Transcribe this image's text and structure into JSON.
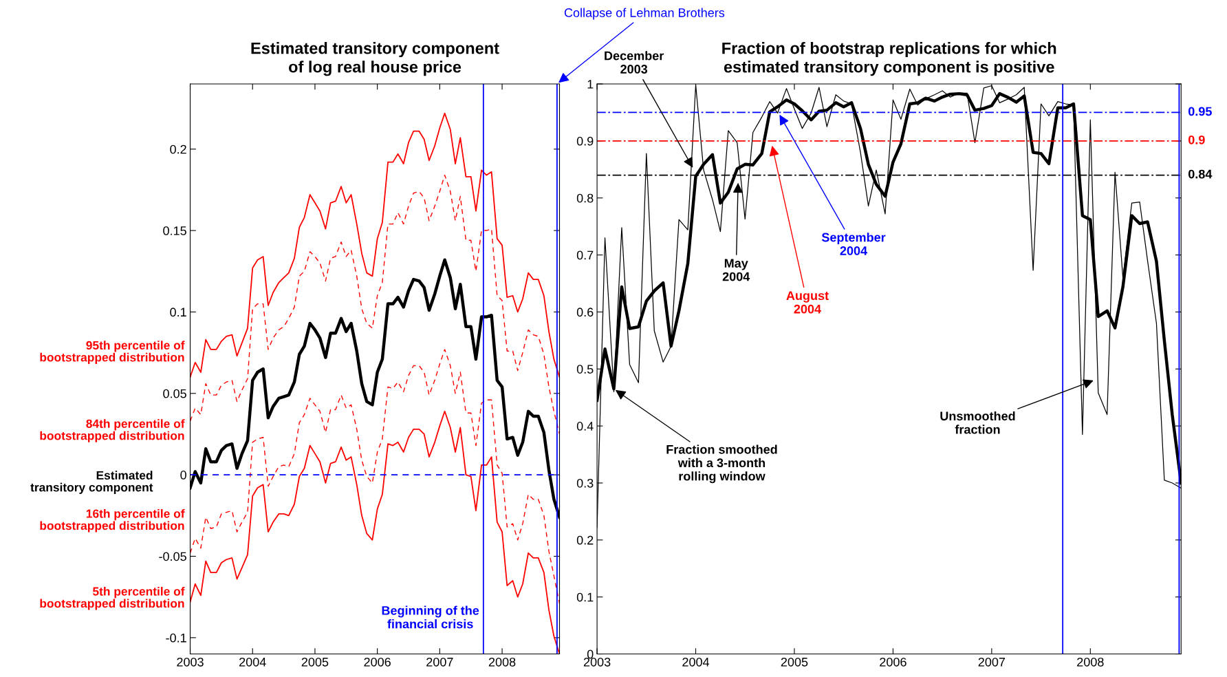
{
  "chart_data": [
    {
      "type": "line",
      "title": "Estimated transitory component\nof log real house price",
      "x": [
        2003,
        2003.08,
        2003.17,
        2003.25,
        2003.33,
        2003.42,
        2003.5,
        2003.58,
        2003.67,
        2003.75,
        2003.83,
        2003.92,
        2004,
        2004.08,
        2004.17,
        2004.25,
        2004.33,
        2004.42,
        2004.5,
        2004.58,
        2004.67,
        2004.75,
        2004.83,
        2004.92,
        2005,
        2005.08,
        2005.17,
        2005.25,
        2005.33,
        2005.42,
        2005.5,
        2005.58,
        2005.67,
        2005.75,
        2005.83,
        2005.92,
        2006,
        2006.08,
        2006.17,
        2006.25,
        2006.33,
        2006.42,
        2006.5,
        2006.58,
        2006.67,
        2006.75,
        2006.83,
        2006.92,
        2007,
        2007.08,
        2007.17,
        2007.25,
        2007.33,
        2007.42,
        2007.5,
        2007.58,
        2007.67,
        2007.75,
        2007.83,
        2007.92,
        2008,
        2008.08,
        2008.17,
        2008.25,
        2008.33,
        2008.42,
        2008.5,
        2008.58,
        2008.67,
        2008.75,
        2008.83,
        2008.92
      ],
      "series": [
        {
          "name": "95th percentile of\nbootstrapped distribution",
          "color": "#ff0000",
          "line_style": "solid",
          "values": [
            0.06,
            0.069,
            0.063,
            0.083,
            0.077,
            0.077,
            0.082,
            0.085,
            0.086,
            0.073,
            0.081,
            0.09,
            0.127,
            0.132,
            0.134,
            0.104,
            0.112,
            0.118,
            0.121,
            0.124,
            0.133,
            0.152,
            0.158,
            0.172,
            0.167,
            0.162,
            0.151,
            0.167,
            0.168,
            0.177,
            0.167,
            0.172,
            0.154,
            0.136,
            0.124,
            0.122,
            0.145,
            0.155,
            0.192,
            0.192,
            0.197,
            0.191,
            0.204,
            0.211,
            0.211,
            0.206,
            0.193,
            0.202,
            0.213,
            0.222,
            0.212,
            0.191,
            0.207,
            0.183,
            0.183,
            0.162,
            0.187,
            0.184,
            0.186,
            0.145,
            0.141,
            0.109,
            0.11,
            0.1,
            0.108,
            0.124,
            0.12,
            0.12,
            0.11,
            0.088,
            0.071,
            0.06
          ]
        },
        {
          "name": "84th percentile of\nbootstrapped distribution",
          "color": "#ff0000",
          "line_style": "dashed",
          "values": [
            0.033,
            0.041,
            0.037,
            0.056,
            0.049,
            0.049,
            0.055,
            0.057,
            0.058,
            0.045,
            0.052,
            0.059,
            0.102,
            0.105,
            0.105,
            0.077,
            0.084,
            0.089,
            0.091,
            0.096,
            0.103,
            0.122,
            0.125,
            0.137,
            0.134,
            0.13,
            0.119,
            0.133,
            0.134,
            0.143,
            0.134,
            0.138,
            0.122,
            0.102,
            0.093,
            0.09,
            0.11,
            0.118,
            0.154,
            0.154,
            0.161,
            0.154,
            0.165,
            0.173,
            0.174,
            0.17,
            0.156,
            0.165,
            0.174,
            0.184,
            0.174,
            0.156,
            0.171,
            0.144,
            0.144,
            0.125,
            0.15,
            0.15,
            0.151,
            0.11,
            0.107,
            0.076,
            0.076,
            0.064,
            0.075,
            0.089,
            0.086,
            0.085,
            0.074,
            0.054,
            0.039,
            0.025
          ]
        },
        {
          "name": "Estimated\ntransitory component",
          "color": "#000000",
          "line_style": "solid",
          "values": [
            -0.008,
            0.002,
            -0.005,
            0.016,
            0.008,
            0.008,
            0.015,
            0.018,
            0.019,
            0.004,
            0.013,
            0.021,
            0.058,
            0.063,
            0.065,
            0.035,
            0.042,
            0.047,
            0.048,
            0.049,
            0.057,
            0.074,
            0.079,
            0.093,
            0.089,
            0.084,
            0.072,
            0.087,
            0.087,
            0.096,
            0.088,
            0.093,
            0.076,
            0.056,
            0.045,
            0.043,
            0.063,
            0.071,
            0.105,
            0.105,
            0.109,
            0.103,
            0.113,
            0.12,
            0.119,
            0.115,
            0.101,
            0.111,
            0.122,
            0.132,
            0.121,
            0.102,
            0.117,
            0.091,
            0.091,
            0.071,
            0.097,
            0.097,
            0.098,
            0.058,
            0.054,
            0.022,
            0.023,
            0.012,
            0.02,
            0.039,
            0.036,
            0.036,
            0.026,
            0.003,
            -0.015,
            -0.026
          ]
        },
        {
          "name": "16th percentile of\nbootstrapped distribution",
          "color": "#ff0000",
          "line_style": "dashed",
          "values": [
            -0.048,
            -0.039,
            -0.045,
            -0.026,
            -0.033,
            -0.032,
            -0.024,
            -0.023,
            -0.022,
            -0.035,
            -0.029,
            -0.023,
            0.02,
            0.022,
            0.023,
            -0.007,
            -0.001,
            0.005,
            0.006,
            0.005,
            0.013,
            0.032,
            0.037,
            0.047,
            0.043,
            0.039,
            0.026,
            0.04,
            0.04,
            0.049,
            0.041,
            0.043,
            0.028,
            0.009,
            -0.001,
            -0.005,
            0.014,
            0.022,
            0.054,
            0.053,
            0.057,
            0.051,
            0.061,
            0.067,
            0.067,
            0.063,
            0.049,
            0.058,
            0.068,
            0.077,
            0.067,
            0.05,
            0.063,
            0.038,
            0.038,
            0.018,
            0.044,
            0.046,
            0.046,
            0.006,
            0.001,
            -0.032,
            -0.03,
            -0.04,
            -0.03,
            -0.012,
            -0.015,
            -0.015,
            -0.025,
            -0.047,
            -0.062,
            -0.079
          ]
        },
        {
          "name": "5th percentile of\nbootstrapped distribution",
          "color": "#ff0000",
          "line_style": "solid",
          "values": [
            -0.078,
            -0.067,
            -0.074,
            -0.053,
            -0.06,
            -0.06,
            -0.054,
            -0.052,
            -0.051,
            -0.064,
            -0.057,
            -0.049,
            -0.013,
            -0.008,
            -0.006,
            -0.035,
            -0.029,
            -0.024,
            -0.024,
            -0.025,
            -0.018,
            -0.001,
            0.004,
            0.018,
            0.013,
            0.008,
            -0.005,
            0.007,
            0.008,
            0.017,
            0.009,
            0.011,
            -0.006,
            -0.025,
            -0.036,
            -0.04,
            -0.021,
            -0.012,
            0.019,
            0.018,
            0.02,
            0.014,
            0.023,
            0.028,
            0.028,
            0.025,
            0.011,
            0.02,
            0.03,
            0.039,
            0.029,
            0.014,
            0.029,
            0.0,
            -0.001,
            -0.022,
            0.006,
            0.006,
            0.011,
            -0.029,
            -0.035,
            -0.068,
            -0.065,
            -0.075,
            -0.067,
            -0.048,
            -0.051,
            -0.051,
            -0.06,
            -0.083,
            -0.099,
            -0.11
          ]
        }
      ],
      "xlim": [
        2003,
        2008.92
      ],
      "xticks": [
        2003,
        2004,
        2005,
        2006,
        2007,
        2008
      ],
      "ylim": [
        -0.11,
        0.24
      ],
      "yticks": [
        -0.1,
        -0.05,
        0,
        0.05,
        0.1,
        0.15,
        0.2
      ],
      "ref_lines": [
        {
          "axis": "y",
          "value": 0,
          "color": "#0000ff",
          "line_style": "dashed"
        },
        {
          "axis": "x",
          "value": 2007.7,
          "color": "#0000ff",
          "line_style": "solid"
        },
        {
          "axis": "x",
          "value": 2008.88,
          "color": "#0000ff",
          "line_style": "solid"
        }
      ],
      "annotations": [
        {
          "text": "Beginning of the\nfinancial crisis",
          "x": 2007.7,
          "y": -0.1
        },
        {
          "text": "Collapse of Lehman Brothers",
          "x": 2008.88,
          "y": 0.24
        }
      ],
      "grid": false,
      "legend": false,
      "marker": "none"
    },
    {
      "type": "line",
      "title": "Fraction of bootstrap replications for which\nestimated transitory component is positive",
      "x": [
        2003,
        2003.08,
        2003.17,
        2003.25,
        2003.33,
        2003.42,
        2003.5,
        2003.58,
        2003.67,
        2003.75,
        2003.83,
        2003.92,
        2004,
        2004.08,
        2004.17,
        2004.25,
        2004.33,
        2004.42,
        2004.5,
        2004.58,
        2004.67,
        2004.75,
        2004.83,
        2004.92,
        2005,
        2005.08,
        2005.17,
        2005.25,
        2005.33,
        2005.42,
        2005.5,
        2005.58,
        2005.67,
        2005.75,
        2005.83,
        2005.92,
        2006,
        2006.08,
        2006.17,
        2006.25,
        2006.33,
        2006.42,
        2006.5,
        2006.58,
        2006.67,
        2006.75,
        2006.83,
        2006.92,
        2007,
        2007.08,
        2007.17,
        2007.25,
        2007.33,
        2007.42,
        2007.5,
        2007.58,
        2007.67,
        2007.75,
        2007.83,
        2007.92,
        2008,
        2008.08,
        2008.17,
        2008.25,
        2008.33,
        2008.42,
        2008.5,
        2008.58,
        2008.67,
        2008.75,
        2008.83,
        2008.92
      ],
      "series": [
        {
          "color": "#000000",
          "line_style": "solid",
          "values": [
            0.222,
            0.73,
            0.46,
            0.748,
            0.508,
            0.476,
            0.878,
            0.567,
            0.512,
            0.54,
            0.762,
            0.744,
            0.998,
            0.849,
            0.797,
            0.741,
            0.918,
            0.897,
            0.763,
            0.915,
            0.942,
            0.969,
            0.949,
            0.992,
            0.956,
            0.922,
            0.949,
            0.994,
            0.925,
            0.981,
            0.97,
            0.965,
            0.88,
            0.786,
            0.849,
            0.772,
            0.972,
            0.938,
            0.991,
            0.963,
            0.974,
            0.981,
            0.988,
            0.977,
            0.984,
            0.984,
            0.897,
            0.993,
            0.997,
            0.967,
            0.974,
            0.981,
            0.994,
            0.673,
            0.965,
            0.944,
            0.969,
            0.965,
            0.963,
            0.385,
            0.937,
            0.458,
            0.42,
            0.845,
            0.66,
            0.791,
            0.793,
            0.69,
            0.58,
            0.305,
            0.3,
            0.291
          ]
        },
        {
          "color": "#000000",
          "line_style": "solid",
          "values": [
            0.445,
            0.535,
            0.465,
            0.644,
            0.571,
            0.574,
            0.619,
            0.637,
            0.651,
            0.54,
            0.602,
            0.685,
            0.838,
            0.859,
            0.876,
            0.791,
            0.81,
            0.851,
            0.859,
            0.858,
            0.878,
            0.951,
            0.96,
            0.972,
            0.965,
            0.953,
            0.937,
            0.952,
            0.954,
            0.967,
            0.96,
            0.967,
            0.922,
            0.859,
            0.824,
            0.803,
            0.863,
            0.895,
            0.965,
            0.967,
            0.975,
            0.97,
            0.977,
            0.982,
            0.983,
            0.981,
            0.954,
            0.957,
            0.962,
            0.983,
            0.976,
            0.968,
            0.979,
            0.88,
            0.878,
            0.86,
            0.958,
            0.958,
            0.965,
            0.769,
            0.762,
            0.592,
            0.602,
            0.572,
            0.644,
            0.769,
            0.755,
            0.758,
            0.689,
            0.55,
            0.42,
            0.3
          ]
        }
      ],
      "xlim": [
        2003,
        2008.92
      ],
      "xticks": [
        2003,
        2004,
        2005,
        2006,
        2007,
        2008
      ],
      "ylim": [
        0,
        1
      ],
      "yticks": [
        0,
        0.1,
        0.2,
        0.3,
        0.4,
        0.5,
        0.6,
        0.7,
        0.8,
        0.9,
        1
      ],
      "ref_lines": [
        {
          "axis": "y",
          "value": 0.95,
          "label": "0.95",
          "color": "#0000ff",
          "line_style": "dashdot"
        },
        {
          "axis": "y",
          "value": 0.9,
          "label": "0.9",
          "color": "#ff0000",
          "line_style": "dashdot"
        },
        {
          "axis": "y",
          "value": 0.84,
          "label": "0.84",
          "color": "#000000",
          "line_style": "dashdot"
        },
        {
          "axis": "x",
          "value": 2007.72,
          "color": "#0000ff",
          "line_style": "solid"
        },
        {
          "axis": "x",
          "value": 2008.9,
          "color": "#0000ff",
          "line_style": "solid"
        }
      ],
      "annotations": [
        {
          "text": "December\n2003",
          "x": 2003.98,
          "y": 0.85
        },
        {
          "text": "May\n2004",
          "x": 2004.43,
          "y": 0.83
        },
        {
          "text": "August\n2004",
          "x": 2004.77,
          "y": 0.895
        },
        {
          "text": "September\n2004",
          "x": 2004.84,
          "y": 0.949
        },
        {
          "text": "Fraction smoothed\nwith a 3-month\nrolling window",
          "x": 2003.17,
          "y": 0.465
        },
        {
          "text": "Unsmoothed\nfraction",
          "x": 2008.05,
          "y": 0.481
        }
      ],
      "grid": false,
      "legend": false,
      "marker": "none"
    }
  ]
}
